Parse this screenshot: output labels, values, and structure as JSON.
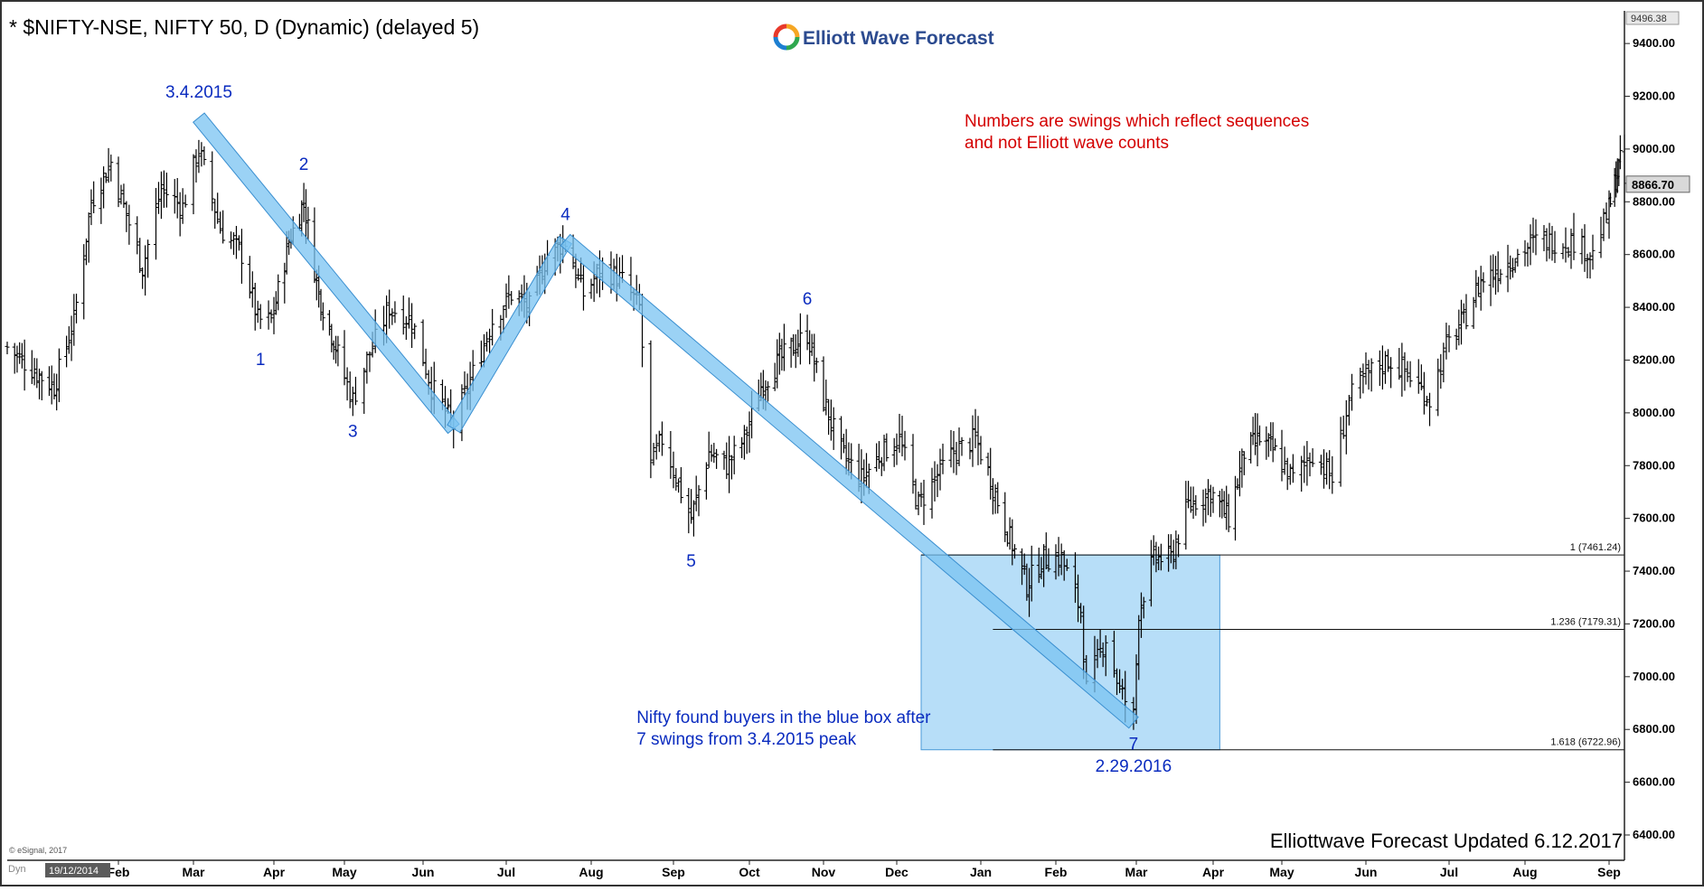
{
  "header": {
    "title": "* $NIFTY-NSE, NIFTY 50, D (Dynamic) (delayed 5)",
    "logo_text": "Elliott Wave Forecast"
  },
  "footer": {
    "updated_text": "Elliottwave Forecast Updated 6.12.2017",
    "esignal_text": "© eSignal, 2017",
    "start_date_label": "19/12/2014",
    "dyn_label": "Dyn"
  },
  "colors": {
    "wave_label": "#0a2bbf",
    "note_red": "#d40000",
    "channel_fill": "#79c3f2",
    "channel_stroke": "#3a8fd0",
    "box_fill": "#aad8f7",
    "box_stroke": "#4a9ad8",
    "axis_line": "#222222",
    "background": "#ffffff"
  },
  "chart_data": {
    "type": "ohlc-bar",
    "instrument": "$NIFTY-NSE, NIFTY 50",
    "timeframe": "D",
    "x_axis": {
      "type": "date",
      "range": [
        "2014-12-19",
        "2016-09-12"
      ],
      "tick_labels": [
        "Feb",
        "Mar",
        "Apr",
        "May",
        "Jun",
        "Jul",
        "Aug",
        "Sep",
        "Oct",
        "Nov",
        "Dec",
        "Jan",
        "Feb",
        "Mar",
        "Apr",
        "May",
        "Jun",
        "Jul",
        "Aug",
        "Sep"
      ]
    },
    "y_axis": {
      "ylim": [
        6300,
        9520
      ],
      "ticks": [
        9400,
        9200,
        9000,
        8800,
        8600,
        8400,
        8200,
        8000,
        7800,
        7600,
        7400,
        7200,
        7000,
        6800,
        6600,
        6400
      ],
      "tick_labels": [
        "9400.00",
        "9200.00",
        "9000.00",
        "8800.00",
        "8600.00",
        "8400.00",
        "8200.00",
        "8000.00",
        "7800.00",
        "7600.00",
        "7400.00",
        "7200.00",
        "7000.00",
        "6800.00",
        "6600.00",
        "6400.00"
      ],
      "top_value_label": "9496.38",
      "last_price_label": "8866.70",
      "last_price": 8866.7
    },
    "price_path": [
      {
        "date": "2014-12-19",
        "close": 8250
      },
      {
        "date": "2014-12-31",
        "close": 8150
      },
      {
        "date": "2015-01-07",
        "close": 8100
      },
      {
        "date": "2015-01-15",
        "close": 8350
      },
      {
        "date": "2015-01-22",
        "close": 8800
      },
      {
        "date": "2015-01-30",
        "close": 8950
      },
      {
        "date": "2015-02-05",
        "close": 8750
      },
      {
        "date": "2015-02-11",
        "close": 8550
      },
      {
        "date": "2015-02-18",
        "close": 8850
      },
      {
        "date": "2015-02-26",
        "close": 8780
      },
      {
        "date": "2015-03-04",
        "close": 9000
      },
      {
        "date": "2015-03-12",
        "close": 8700
      },
      {
        "date": "2015-03-20",
        "close": 8600
      },
      {
        "date": "2015-03-26",
        "close": 8350
      },
      {
        "date": "2015-03-31",
        "close": 8350
      },
      {
        "date": "2015-04-08",
        "close": 8650
      },
      {
        "date": "2015-04-15",
        "close": 8800
      },
      {
        "date": "2015-04-22",
        "close": 8450
      },
      {
        "date": "2015-04-30",
        "close": 8250
      },
      {
        "date": "2015-05-07",
        "close": 8050
      },
      {
        "date": "2015-05-12",
        "close": 8200
      },
      {
        "date": "2015-05-20",
        "close": 8400
      },
      {
        "date": "2015-05-28",
        "close": 8350
      },
      {
        "date": "2015-06-04",
        "close": 8100
      },
      {
        "date": "2015-06-12",
        "close": 7950
      },
      {
        "date": "2015-06-19",
        "close": 8150
      },
      {
        "date": "2015-06-26",
        "close": 8350
      },
      {
        "date": "2015-07-03",
        "close": 8450
      },
      {
        "date": "2015-07-10",
        "close": 8400
      },
      {
        "date": "2015-07-17",
        "close": 8600
      },
      {
        "date": "2015-07-24",
        "close": 8650
      },
      {
        "date": "2015-07-31",
        "close": 8450
      },
      {
        "date": "2015-08-07",
        "close": 8550
      },
      {
        "date": "2015-08-14",
        "close": 8500
      },
      {
        "date": "2015-08-20",
        "close": 8400
      },
      {
        "date": "2015-08-24",
        "close": 7800
      },
      {
        "date": "2015-08-28",
        "close": 7900
      },
      {
        "date": "2015-09-04",
        "close": 7700
      },
      {
        "date": "2015-09-08",
        "close": 7600
      },
      {
        "date": "2015-09-15",
        "close": 7850
      },
      {
        "date": "2015-09-22",
        "close": 7800
      },
      {
        "date": "2015-09-29",
        "close": 7900
      },
      {
        "date": "2015-10-06",
        "close": 8100
      },
      {
        "date": "2015-10-14",
        "close": 8200
      },
      {
        "date": "2015-10-26",
        "close": 8300
      },
      {
        "date": "2015-11-02",
        "close": 8050
      },
      {
        "date": "2015-11-09",
        "close": 7850
      },
      {
        "date": "2015-11-17",
        "close": 7750
      },
      {
        "date": "2015-11-25",
        "close": 7850
      },
      {
        "date": "2015-12-02",
        "close": 7900
      },
      {
        "date": "2015-12-09",
        "close": 7650
      },
      {
        "date": "2015-12-15",
        "close": 7750
      },
      {
        "date": "2015-12-22",
        "close": 7850
      },
      {
        "date": "2015-12-30",
        "close": 7900
      },
      {
        "date": "2016-01-05",
        "close": 7750
      },
      {
        "date": "2016-01-12",
        "close": 7550
      },
      {
        "date": "2016-01-20",
        "close": 7350
      },
      {
        "date": "2016-01-27",
        "close": 7450
      },
      {
        "date": "2016-02-03",
        "close": 7450
      },
      {
        "date": "2016-02-10",
        "close": 7250
      },
      {
        "date": "2016-02-12",
        "close": 6950
      },
      {
        "date": "2016-02-19",
        "close": 7150
      },
      {
        "date": "2016-02-24",
        "close": 6950
      },
      {
        "date": "2016-02-29",
        "close": 6850
      },
      {
        "date": "2016-03-02",
        "close": 7250
      },
      {
        "date": "2016-03-08",
        "close": 7450
      },
      {
        "date": "2016-03-15",
        "close": 7450
      },
      {
        "date": "2016-03-22",
        "close": 7650
      },
      {
        "date": "2016-03-31",
        "close": 7700
      },
      {
        "date": "2016-04-08",
        "close": 7600
      },
      {
        "date": "2016-04-15",
        "close": 7850
      },
      {
        "date": "2016-04-22",
        "close": 7900
      },
      {
        "date": "2016-04-29",
        "close": 7850
      },
      {
        "date": "2016-05-06",
        "close": 7750
      },
      {
        "date": "2016-05-13",
        "close": 7850
      },
      {
        "date": "2016-05-20",
        "close": 7750
      },
      {
        "date": "2016-05-26",
        "close": 8050
      },
      {
        "date": "2016-06-02",
        "close": 8150
      },
      {
        "date": "2016-06-09",
        "close": 8200
      },
      {
        "date": "2016-06-16",
        "close": 8150
      },
      {
        "date": "2016-06-24",
        "close": 8050
      },
      {
        "date": "2016-06-30",
        "close": 8250
      },
      {
        "date": "2016-07-07",
        "close": 8350
      },
      {
        "date": "2016-07-14",
        "close": 8500
      },
      {
        "date": "2016-07-22",
        "close": 8550
      },
      {
        "date": "2016-07-29",
        "close": 8600
      },
      {
        "date": "2016-08-05",
        "close": 8650
      },
      {
        "date": "2016-08-12",
        "close": 8650
      },
      {
        "date": "2016-08-19",
        "close": 8650
      },
      {
        "date": "2016-08-26",
        "close": 8600
      },
      {
        "date": "2016-09-02",
        "close": 8800
      },
      {
        "date": "2016-09-09",
        "close": 8950
      },
      {
        "date": "2016-09-12",
        "close": 8867
      }
    ],
    "swing_labels": [
      {
        "text": "3.4.2015",
        "date": "2015-03-04",
        "price": 9119,
        "position": "above",
        "offset": 22
      },
      {
        "text": "1",
        "date": "2015-03-27",
        "price": 8270,
        "position": "below",
        "offset": 26
      },
      {
        "text": "2",
        "date": "2015-04-15",
        "price": 8845,
        "position": "above",
        "offset": 22
      },
      {
        "text": "3",
        "date": "2015-05-07",
        "price": 7997,
        "position": "below",
        "offset": 26
      },
      {
        "text": "4",
        "date": "2015-07-24",
        "price": 8655,
        "position": "above",
        "offset": 22
      },
      {
        "text": "5",
        "date": "2015-09-08",
        "price": 7540,
        "position": "below",
        "offset": 36
      },
      {
        "text": "6",
        "date": "2015-10-26",
        "price": 8336,
        "position": "above",
        "offset": 22
      },
      {
        "text": "7",
        "date": "2016-02-29",
        "price": 6826,
        "position": "below",
        "offset": 30
      }
    ],
    "date_annotation": {
      "text": "2.29.2016",
      "date": "2016-02-29",
      "price": 6640
    },
    "channels": [
      {
        "from": {
          "date": "2015-03-04",
          "price": 9119
        },
        "to": {
          "date": "2015-06-12",
          "price": 7940
        }
      },
      {
        "from": {
          "date": "2015-06-12",
          "price": 7940
        },
        "to": {
          "date": "2015-07-24",
          "price": 8655
        }
      },
      {
        "from": {
          "date": "2015-07-24",
          "price": 8655
        },
        "to": {
          "date": "2016-02-29",
          "price": 6826
        }
      }
    ],
    "blue_box": {
      "from_date": "2015-12-10",
      "to_date": "2016-04-04",
      "top": 7461.24,
      "bottom": 6722.96
    },
    "fib_levels": [
      {
        "label": "1 (7461.24)",
        "value": 7461.24,
        "from_date": "2015-12-10"
      },
      {
        "label": "1.236 (7179.31)",
        "value": 7179.31,
        "from_date": "2016-01-06"
      },
      {
        "label": "1.618 (6722.96)",
        "value": 6722.96,
        "from_date": "2016-01-06"
      }
    ],
    "annotations": [
      {
        "text_lines": [
          "Numbers are swings which reflect sequences",
          "and not Elliott wave counts"
        ],
        "color": "red",
        "date": "2015-12-26",
        "price": 9085
      },
      {
        "text_lines": [
          "Nifty found buyers in the blue box after",
          "7 swings from 3.4.2015 peak"
        ],
        "color": "blue",
        "date": "2015-08-19",
        "price": 6825
      }
    ],
    "grid": false
  }
}
